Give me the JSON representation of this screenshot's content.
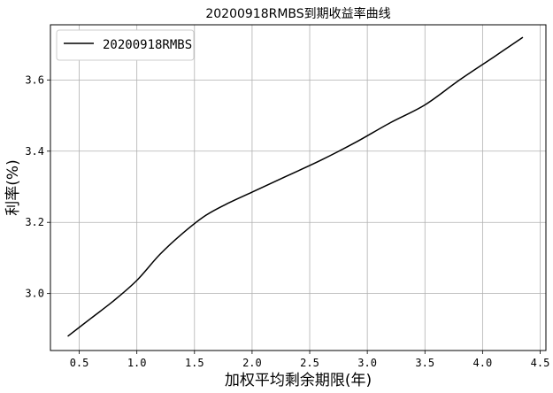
{
  "chart_data": {
    "type": "line",
    "title": "20200918RMBS到期收益率曲线",
    "xlabel": "加权平均剩余期限(年)",
    "ylabel": "利率(%)",
    "xlim": [
      0.25,
      4.55
    ],
    "ylim": [
      2.84,
      3.755
    ],
    "xticks": [
      0.5,
      1.0,
      1.5,
      2.0,
      2.5,
      3.0,
      3.5,
      4.0,
      4.5
    ],
    "xtick_labels": [
      "0.5",
      "1.0",
      "1.5",
      "2.0",
      "2.5",
      "3.0",
      "3.5",
      "4.0",
      "4.5"
    ],
    "yticks": [
      3.0,
      3.2,
      3.4,
      3.6
    ],
    "ytick_labels": [
      "3.0",
      "3.2",
      "3.4",
      "3.6"
    ],
    "grid": true,
    "legend_position": "top-left",
    "series": [
      {
        "name": "20200918RMBS",
        "color": "#000000",
        "x": [
          0.4,
          0.6,
          0.8,
          1.0,
          1.2,
          1.4,
          1.6,
          1.8,
          2.0,
          2.3,
          2.6,
          2.9,
          3.2,
          3.5,
          3.8,
          4.1,
          4.35
        ],
        "y": [
          2.88,
          2.93,
          2.98,
          3.037,
          3.11,
          3.17,
          3.22,
          3.255,
          3.285,
          3.33,
          3.375,
          3.425,
          3.48,
          3.53,
          3.6,
          3.665,
          3.72
        ]
      }
    ]
  }
}
